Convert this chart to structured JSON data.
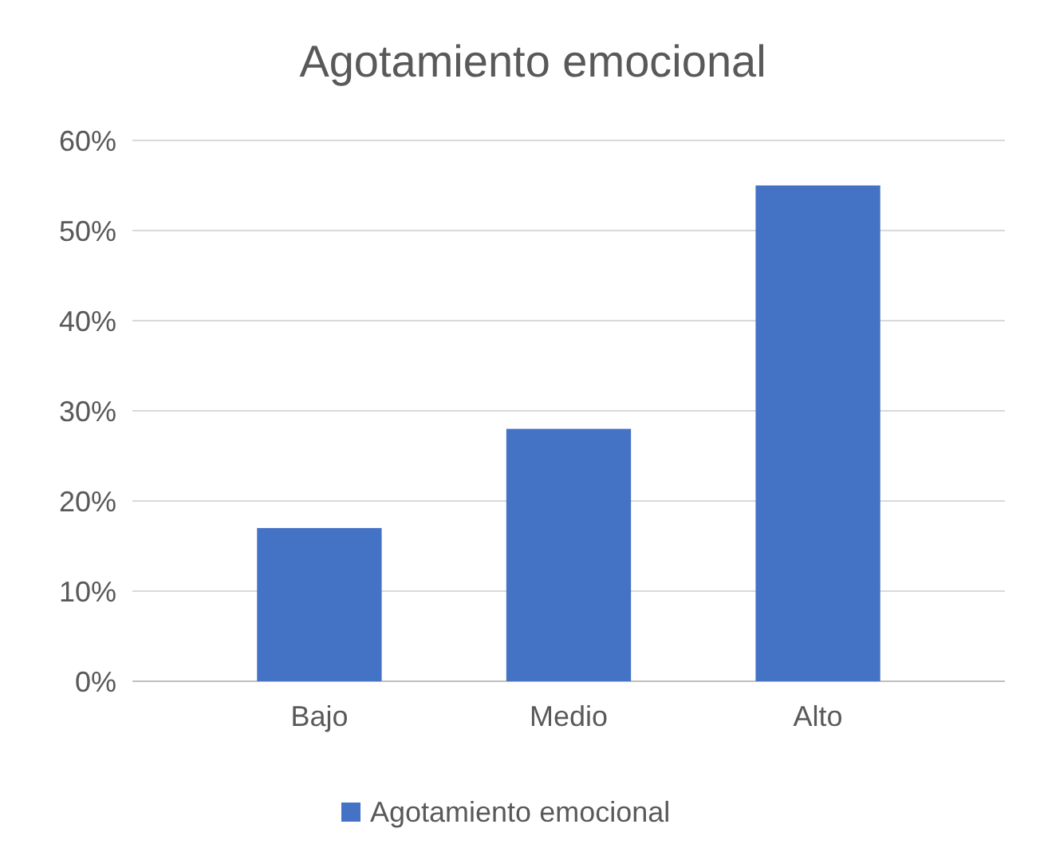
{
  "chart_data": {
    "type": "bar",
    "title": "Agotamiento emocional",
    "categories": [
      "Bajo",
      "Medio",
      "Alto"
    ],
    "series": [
      {
        "name": "Agotamiento emocional",
        "color": "#4472c4",
        "values": [
          0.17,
          0.28,
          0.55
        ]
      }
    ],
    "ylim": [
      0,
      0.6
    ],
    "yticks": [
      {
        "value": 0,
        "label": "0%"
      },
      {
        "value": 0.1,
        "label": "10%"
      },
      {
        "value": 0.2,
        "label": "20%"
      },
      {
        "value": 0.3,
        "label": "30%"
      },
      {
        "value": 0.4,
        "label": "40%"
      },
      {
        "value": 0.5,
        "label": "50%"
      },
      {
        "value": 0.6,
        "label": "60%"
      }
    ],
    "grid": "y",
    "legend": "bottom"
  }
}
